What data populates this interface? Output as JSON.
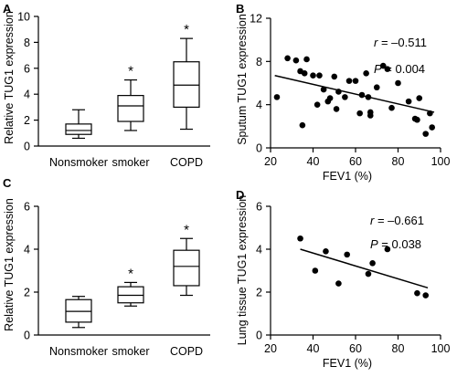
{
  "chart_data": [
    {
      "panel": "A",
      "type": "box",
      "ylabel": "Relative TUG1 expression",
      "ylim": [
        0,
        10
      ],
      "yticks": [
        0,
        2,
        4,
        6,
        8,
        10
      ],
      "categories": [
        "Nonsmoker",
        "smoker",
        "COPD"
      ],
      "boxes": [
        {
          "min": 0.6,
          "q1": 0.9,
          "median": 1.2,
          "q3": 1.7,
          "max": 2.8,
          "star": ""
        },
        {
          "min": 1.2,
          "q1": 1.9,
          "median": 3.1,
          "q3": 3.9,
          "max": 5.1,
          "star": "*"
        },
        {
          "min": 1.3,
          "q1": 3.0,
          "median": 4.7,
          "q3": 6.5,
          "max": 8.3,
          "star": "*"
        }
      ]
    },
    {
      "panel": "B",
      "type": "scatter",
      "xlabel": "FEV1 (%)",
      "ylabel": "Sputum TUG1 expression",
      "xlim": [
        20,
        100
      ],
      "ylim": [
        0,
        12
      ],
      "xticks": [
        20,
        40,
        60,
        80,
        100
      ],
      "yticks": [
        0,
        4,
        8,
        12
      ],
      "annotation": {
        "r_label": "r",
        "r_value": "= –0.511",
        "p_label": "P",
        "p_value": "= 0.004"
      },
      "fit": {
        "x": [
          22,
          97
        ],
        "y": [
          6.7,
          3.3
        ]
      },
      "points": {
        "x": [
          23,
          28,
          32,
          34,
          35,
          36,
          37,
          40,
          42,
          43,
          45,
          47,
          48,
          50,
          51,
          52,
          55,
          57,
          60,
          62,
          63,
          65,
          66,
          67,
          67,
          70,
          73,
          75,
          77,
          80,
          85,
          88,
          89,
          90,
          93,
          95,
          96
        ],
        "y": [
          4.7,
          8.3,
          8.1,
          7.1,
          2.1,
          6.9,
          8.2,
          6.7,
          4.0,
          6.7,
          5.4,
          4.3,
          4.6,
          6.6,
          3.6,
          5.2,
          4.7,
          6.2,
          6.2,
          3.2,
          4.9,
          6.9,
          4.7,
          3.0,
          3.3,
          5.6,
          7.6,
          7.3,
          3.7,
          6.0,
          4.3,
          2.7,
          2.6,
          4.6,
          1.3,
          3.2,
          1.9
        ]
      }
    },
    {
      "panel": "C",
      "type": "box",
      "ylabel": "Relative TUG1 expression",
      "ylim": [
        0,
        6
      ],
      "yticks": [
        0,
        2,
        4,
        6
      ],
      "categories": [
        "Nonsmoker",
        "smoker",
        "COPD"
      ],
      "boxes": [
        {
          "min": 0.35,
          "q1": 0.6,
          "median": 1.1,
          "q3": 1.65,
          "max": 1.8,
          "star": ""
        },
        {
          "min": 1.35,
          "q1": 1.5,
          "median": 1.85,
          "q3": 2.25,
          "max": 2.45,
          "star": "*"
        },
        {
          "min": 1.85,
          "q1": 2.3,
          "median": 3.2,
          "q3": 3.95,
          "max": 4.5,
          "star": "*"
        }
      ]
    },
    {
      "panel": "D",
      "type": "scatter",
      "xlabel": "FEV1 (%)",
      "ylabel": "Lung tissue TUG1 expression",
      "xlim": [
        20,
        100
      ],
      "ylim": [
        0,
        6
      ],
      "xticks": [
        20,
        40,
        60,
        80,
        100
      ],
      "yticks": [
        0,
        2,
        4,
        6
      ],
      "annotation": {
        "r_label": "r",
        "r_value": "= –0.661",
        "p_label": "P",
        "p_value": "= 0.038"
      },
      "fit": {
        "x": [
          34,
          94
        ],
        "y": [
          4.0,
          2.2
        ]
      },
      "points": {
        "x": [
          34,
          41,
          46,
          52,
          56,
          66,
          68,
          75,
          89,
          93
        ],
        "y": [
          4.5,
          3.0,
          3.9,
          2.4,
          3.75,
          2.85,
          3.35,
          4.0,
          1.95,
          1.85
        ]
      }
    }
  ]
}
